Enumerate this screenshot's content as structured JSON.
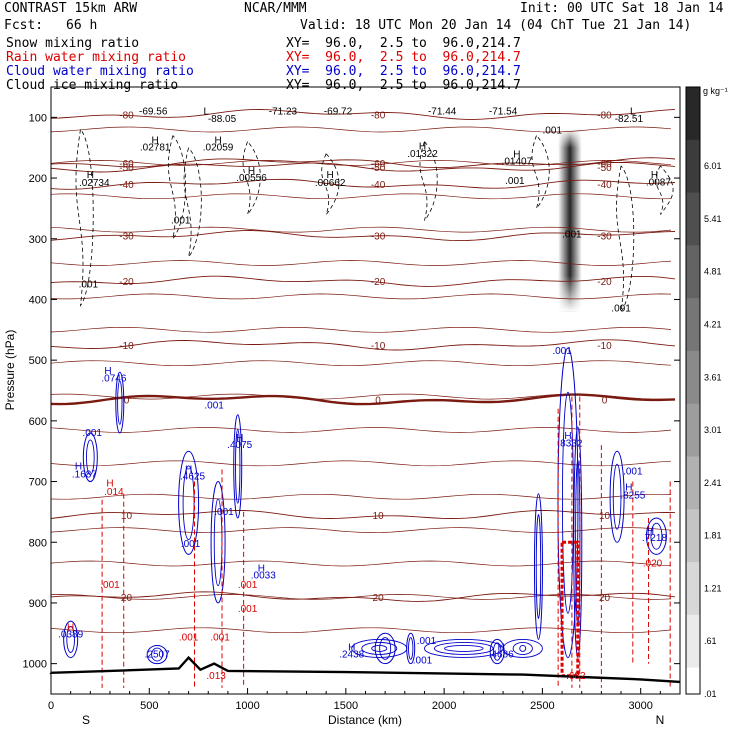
{
  "header": {
    "model": "CONTRAST 15km ARW",
    "fcst_label": "Fcst:",
    "fcst_value": "66 h",
    "center": "NCAR/MMM",
    "init": "Init: 00 UTC Sat 18 Jan 14",
    "valid": "Valid: 18 UTC Mon 20 Jan 14 (04 ChT Tue 21 Jan 14)"
  },
  "fields": [
    {
      "name": "Snow mixing ratio",
      "xy": "XY=  96.0,  2.5 to  96.0,214.7",
      "color": "#000000"
    },
    {
      "name": "Rain water mixing ratio",
      "xy": "XY=  96.0,  2.5 to  96.0,214.7",
      "color": "#dd0000"
    },
    {
      "name": "Cloud water mixing ratio",
      "xy": "XY=  96.0,  2.5 to  96.0,214.7",
      "color": "#0000cc"
    },
    {
      "name": "Cloud ice mixing ratio",
      "xy": "XY=  96.0,  2.5 to  96.0,214.7",
      "color": "#000000"
    }
  ],
  "chart_data": {
    "type": "heatmap",
    "title": "",
    "xlabel": "Distance (km)",
    "ylabel": "Pressure (hPa)",
    "xlim": [
      0,
      3200
    ],
    "ylim": [
      1050,
      50
    ],
    "x_ticks": [
      "0",
      "500",
      "1000",
      "1500",
      "2000",
      "2500",
      "3000"
    ],
    "x_tick_values": [
      0,
      500,
      1000,
      1500,
      2000,
      2500,
      3000
    ],
    "y_ticks": [
      "100",
      "200",
      "300",
      "400",
      "500",
      "600",
      "700",
      "800",
      "900",
      "1000"
    ],
    "y_tick_values": [
      100,
      200,
      300,
      400,
      500,
      600,
      700,
      800,
      900,
      1000
    ],
    "x_end_labels": {
      "left": "S",
      "right": "N"
    },
    "colorbar": {
      "unit": "g kg⁻¹",
      "labels": [
        "6.01",
        "5.41",
        "4.81",
        "4.21",
        "3.61",
        "3.01",
        "2.41",
        "1.81",
        "1.21",
        ".61",
        ".01"
      ]
    },
    "snow_max_band": {
      "x": [
        2580,
        2700
      ],
      "p_top": 120,
      "p_bottom": 420
    },
    "temperature_levels": [
      {
        "label": "-80",
        "p": 95
      },
      {
        "label": "-60",
        "p": 175
      },
      {
        "label": "-50",
        "p": 182
      },
      {
        "label": "-40",
        "p": 210
      },
      {
        "label": "-30",
        "p": 295
      },
      {
        "label": "-20",
        "p": 370
      },
      {
        "label": "-10",
        "p": 475
      },
      {
        "label": "0",
        "p": 565
      },
      {
        "label": "10",
        "p": 755
      },
      {
        "label": "20",
        "p": 890
      }
    ],
    "annotations": [
      {
        "text": "-69.56",
        "x": 520,
        "p": 95
      },
      {
        "text": "-88.05",
        "x": 870,
        "p": 108
      },
      {
        "text": "-71.23",
        "x": 1180,
        "p": 95
      },
      {
        "text": "-69.72",
        "x": 1460,
        "p": 95
      },
      {
        "text": "-71.44",
        "x": 1990,
        "p": 95
      },
      {
        "text": "-71.54",
        "x": 2300,
        "p": 95
      },
      {
        "text": "-82.51",
        "x": 2940,
        "p": 108
      },
      {
        "text": ".02781",
        "x": 530,
        "p": 155
      },
      {
        "text": ".02059",
        "x": 850,
        "p": 155
      },
      {
        "text": ".01322",
        "x": 1890,
        "p": 165
      },
      {
        "text": ".01407",
        "x": 2370,
        "p": 178
      },
      {
        "text": ".02734",
        "x": 220,
        "p": 213
      },
      {
        "text": ".00556",
        "x": 1020,
        "p": 205
      },
      {
        "text": ".00662",
        "x": 1420,
        "p": 213
      },
      {
        "text": ".001",
        "x": 2550,
        "p": 127
      },
      {
        "text": ".001",
        "x": 2360,
        "p": 210
      },
      {
        "text": ".0087",
        "x": 3090,
        "p": 212
      },
      {
        "text": ".001",
        "x": 660,
        "p": 275
      },
      {
        "text": ".001",
        "x": 2650,
        "p": 298
      },
      {
        "text": ".001",
        "x": 190,
        "p": 380
      },
      {
        "text": ".001",
        "x": 2900,
        "p": 420
      },
      {
        "text": ".001",
        "x": 2600,
        "p": 490
      },
      {
        "text": ".0746",
        "x": 320,
        "p": 535
      },
      {
        "text": ".001",
        "x": 830,
        "p": 580
      },
      {
        "text": ".001",
        "x": 210,
        "p": 625
      },
      {
        "text": ".4075",
        "x": 960,
        "p": 645
      },
      {
        "text": ".8332",
        "x": 2640,
        "p": 642
      },
      {
        "text": ".1687",
        "x": 170,
        "p": 693
      },
      {
        "text": ".4625",
        "x": 720,
        "p": 697
      },
      {
        "text": ".014",
        "x": 320,
        "p": 722
      },
      {
        "text": ".001",
        "x": 2960,
        "p": 688
      },
      {
        "text": ".8255",
        "x": 2960,
        "p": 728
      },
      {
        "text": ".001",
        "x": 880,
        "p": 755
      },
      {
        "text": ".001",
        "x": 710,
        "p": 808
      },
      {
        "text": ".7218",
        "x": 3070,
        "p": 798
      },
      {
        "text": ".020",
        "x": 3060,
        "p": 840
      },
      {
        "text": ".0033",
        "x": 1080,
        "p": 860
      },
      {
        "text": ".001",
        "x": 300,
        "p": 875
      },
      {
        "text": ".001",
        "x": 1000,
        "p": 875
      },
      {
        "text": ".0389",
        "x": 100,
        "p": 957
      },
      {
        "text": ".2507",
        "x": 540,
        "p": 990
      },
      {
        "text": ".2438",
        "x": 1530,
        "p": 990
      },
      {
        "text": ".4686",
        "x": 2290,
        "p": 990
      },
      {
        "text": ".001",
        "x": 1910,
        "p": 968
      },
      {
        "text": ".001",
        "x": 1890,
        "p": 1000
      },
      {
        "text": ".013",
        "x": 840,
        "p": 1025
      },
      {
        "text": ".001",
        "x": 860,
        "p": 962
      },
      {
        "text": ".001",
        "x": 700,
        "p": 962
      },
      {
        "text": ".001",
        "x": 1000,
        "p": 915
      },
      {
        "text": ".682",
        "x": 2670,
        "p": 1025
      }
    ],
    "maxima": [
      {
        "text": "H",
        "x": 530,
        "p": 143
      },
      {
        "text": "H",
        "x": 850,
        "p": 143
      },
      {
        "text": "H",
        "x": 1890,
        "p": 153
      },
      {
        "text": "H",
        "x": 2370,
        "p": 166
      },
      {
        "text": "H",
        "x": 200,
        "p": 200
      },
      {
        "text": "H",
        "x": 1020,
        "p": 193
      },
      {
        "text": "H",
        "x": 1420,
        "p": 200
      },
      {
        "text": "H",
        "x": 3070,
        "p": 200
      },
      {
        "text": "L",
        "x": 790,
        "p": 95
      },
      {
        "text": "L",
        "x": 2960,
        "p": 95
      },
      {
        "text": "H",
        "x": 290,
        "p": 523
      },
      {
        "text": "H",
        "x": 960,
        "p": 633
      },
      {
        "text": "H",
        "x": 2630,
        "p": 630
      },
      {
        "text": "H",
        "x": 140,
        "p": 680
      },
      {
        "text": "H",
        "x": 700,
        "p": 685
      },
      {
        "text": "H",
        "x": 300,
        "p": 708
      },
      {
        "text": "H",
        "x": 2940,
        "p": 715
      },
      {
        "text": "H",
        "x": 3050,
        "p": 786
      },
      {
        "text": "H",
        "x": 1070,
        "p": 848
      },
      {
        "text": "H",
        "x": 100,
        "p": 945
      },
      {
        "text": "H",
        "x": 1530,
        "p": 978
      },
      {
        "text": "H",
        "x": 2290,
        "p": 978
      }
    ]
  }
}
